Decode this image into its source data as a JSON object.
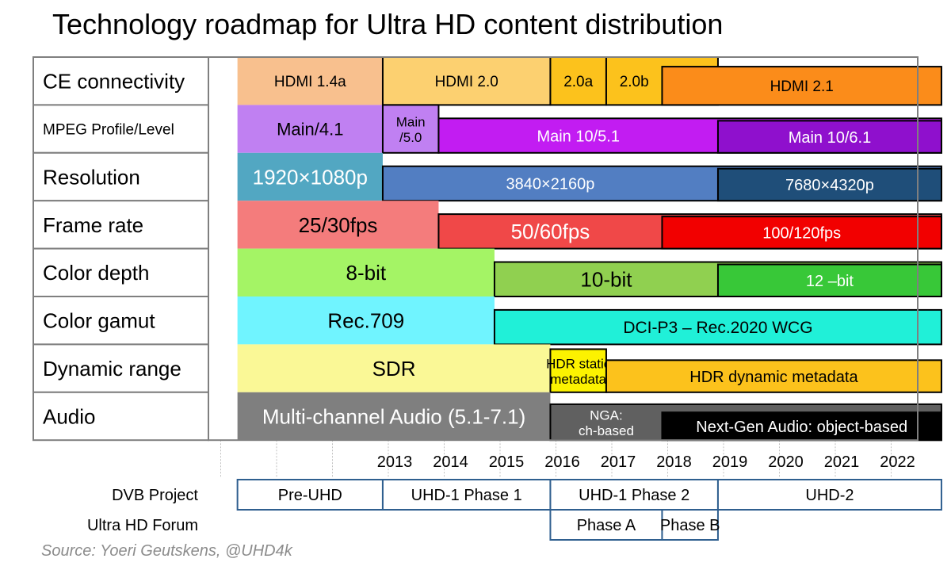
{
  "title": "Technology roadmap for Ultra HD content distribution",
  "source": "Source: Yoeri Geutskens, @UHD4k",
  "chart_data": {
    "type": "timeline",
    "years": [
      "2013",
      "2014",
      "2015",
      "2016",
      "2017",
      "2018",
      "2019",
      "2020",
      "2021",
      "2022"
    ],
    "rows": [
      {
        "label": "CE connectivity",
        "bars": [
          {
            "label": "HDMI 1.4a",
            "start": 2010.3,
            "end": 2012.9,
            "color": "#f8c08e"
          },
          {
            "label": "HDMI 2.0",
            "start": 2012.9,
            "end": 2015.9,
            "color": "#fcd070"
          },
          {
            "label": "2.0a",
            "start": 2015.9,
            "end": 2016.9,
            "color": "#fcc21c"
          },
          {
            "label": "2.0b",
            "start": 2016.9,
            "end": 2018.9,
            "color": "#fcc21c"
          },
          {
            "label": "HDMI 2.1",
            "start": 2017.9,
            "end": 2022.9,
            "color": "#fb8c1a"
          }
        ]
      },
      {
        "label": "MPEG Profile/Level",
        "bars": [
          {
            "label": "Main/4.1",
            "start": 2010.3,
            "end": 2012.9,
            "color": "#c080f2"
          },
          {
            "label": "Main\n/5.0",
            "start": 2012.9,
            "end": 2013.9,
            "color": "#c080f2"
          },
          {
            "label": "Main 10/5.1",
            "start": 2013.9,
            "end": 2022.9,
            "color": "#c21cf2"
          },
          {
            "label": "Main 10/6.1",
            "start": 2018.9,
            "end": 2022.9,
            "color": "#8f10cd"
          }
        ]
      },
      {
        "label": "Resolution",
        "bars": [
          {
            "label": "1920×1080p",
            "start": 2010.3,
            "end": 2012.9,
            "color": "#52a7c2"
          },
          {
            "label": "3840×2160p",
            "start": 2012.9,
            "end": 2022.9,
            "color": "#527ec2"
          },
          {
            "label": "7680×4320p",
            "start": 2018.9,
            "end": 2022.9,
            "color": "#1f4e79"
          }
        ]
      },
      {
        "label": "Frame rate",
        "bars": [
          {
            "label": "25/30fps",
            "start": 2010.3,
            "end": 2013.9,
            "color": "#f47c7c"
          },
          {
            "label": "50/60fps",
            "start": 2013.9,
            "end": 2022.9,
            "color": "#f04848"
          },
          {
            "label": "100/120fps",
            "start": 2017.9,
            "end": 2022.9,
            "color": "#f20000"
          }
        ]
      },
      {
        "label": "Color depth",
        "bars": [
          {
            "label": "8-bit",
            "start": 2010.3,
            "end": 2014.9,
            "color": "#a4f465"
          },
          {
            "label": "10-bit",
            "start": 2014.9,
            "end": 2022.9,
            "color": "#90d050"
          },
          {
            "label": "12 –bit",
            "start": 2018.9,
            "end": 2022.9,
            "color": "#38c838"
          }
        ]
      },
      {
        "label": "Color gamut",
        "bars": [
          {
            "label": "Rec.709",
            "start": 2010.3,
            "end": 2014.9,
            "color": "#70f4ff"
          },
          {
            "label": "DCI-P3 – Rec.2020 WCG",
            "start": 2014.9,
            "end": 2022.9,
            "color": "#20f0d8"
          }
        ]
      },
      {
        "label": "Dynamic range",
        "bars": [
          {
            "label": "SDR",
            "start": 2010.3,
            "end": 2015.9,
            "color": "#faf896"
          },
          {
            "label": "HDR static\nmetadata",
            "start": 2015.9,
            "end": 2016.9,
            "color": "#fcf200"
          },
          {
            "label": "HDR dynamic metadata",
            "start": 2016.9,
            "end": 2022.9,
            "color": "#fcc21c"
          }
        ]
      },
      {
        "label": "Audio",
        "bars": [
          {
            "label": "Multi-channel Audio (5.1-7.1)",
            "start": 2010.3,
            "end": 2015.9,
            "color": "#7f7f7f"
          },
          {
            "label": "NGA:\nch-based",
            "start": 2015.9,
            "end": 2022.9,
            "color": "#606060"
          },
          {
            "label": "Next-Gen Audio: object-based",
            "start": 2017.9,
            "end": 2022.9,
            "color": "#000000"
          }
        ]
      }
    ],
    "programs": [
      {
        "label": "DVB Project",
        "phases": [
          {
            "label": "Pre-UHD",
            "start": 2010.3,
            "end": 2012.9
          },
          {
            "label": "UHD-1 Phase 1",
            "start": 2012.9,
            "end": 2015.9
          },
          {
            "label": "UHD-1 Phase 2",
            "start": 2015.9,
            "end": 2018.9
          },
          {
            "label": "UHD-2",
            "start": 2018.9,
            "end": 2022.9
          }
        ]
      },
      {
        "label": "Ultra HD Forum",
        "phases": [
          {
            "label": "Phase A",
            "start": 2015.9,
            "end": 2017.9
          },
          {
            "label": "Phase B",
            "start": 2017.9,
            "end": 2018.9
          }
        ]
      }
    ]
  }
}
